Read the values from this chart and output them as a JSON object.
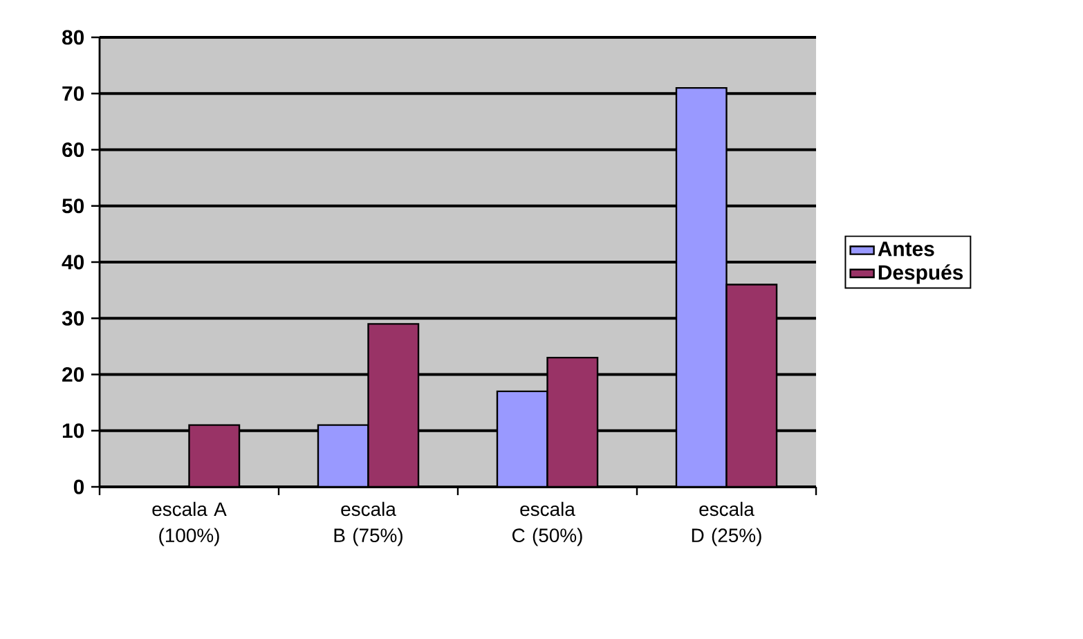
{
  "chart_data": {
    "type": "bar",
    "categories": [
      "escala A (100%)",
      "escala B (75%)",
      "escala C (50%)",
      "escala D (25%)"
    ],
    "series": [
      {
        "name": "Antes",
        "color": "#9999ff",
        "values": [
          null,
          11,
          17,
          71
        ]
      },
      {
        "name": "Después",
        "color": "#993366",
        "values": [
          11,
          29,
          23,
          36
        ]
      }
    ],
    "ylim": [
      0,
      80
    ],
    "yticks": [
      0,
      10,
      20,
      30,
      40,
      50,
      60,
      70,
      80
    ],
    "grid": "y",
    "legend": "right"
  }
}
